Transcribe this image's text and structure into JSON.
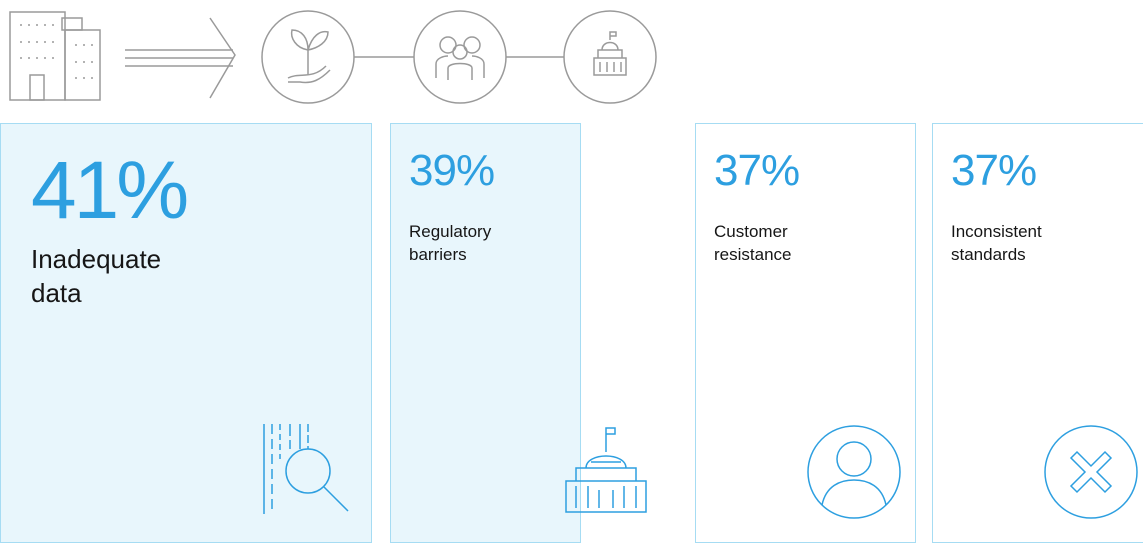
{
  "cards": [
    {
      "value": "41%",
      "label": "Inadequate data"
    },
    {
      "value": "39%",
      "label": "Regulatory barriers"
    },
    {
      "value": "37%",
      "label": "Customer resistance"
    },
    {
      "value": "37%",
      "label": "Inconsistent standards"
    }
  ]
}
